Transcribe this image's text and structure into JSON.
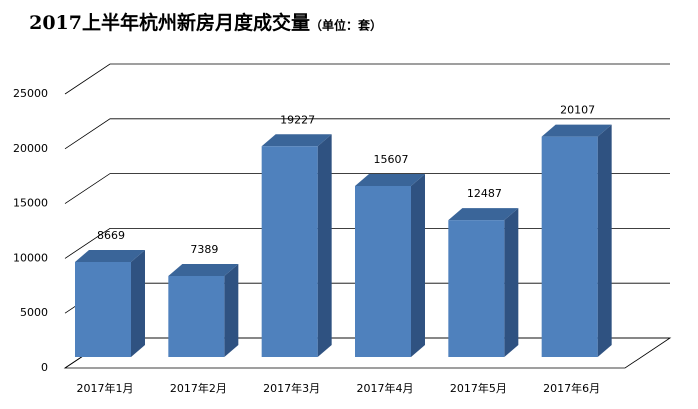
{
  "chart_data": {
    "type": "bar3d",
    "title": "2017上半年杭州新房月度成交量",
    "subtitle": "（单位：套）",
    "categories": [
      "2017年1月",
      "2017年2月",
      "2017年3月",
      "2017年4月",
      "2017年5月",
      "2017年6月"
    ],
    "values": [
      8669,
      7389,
      19227,
      15607,
      12487,
      20107
    ],
    "color": "#4f81bd",
    "ylim": [
      0,
      25000
    ],
    "yticks": [
      0,
      5000,
      10000,
      15000,
      20000,
      25000
    ],
    "grid": true
  }
}
